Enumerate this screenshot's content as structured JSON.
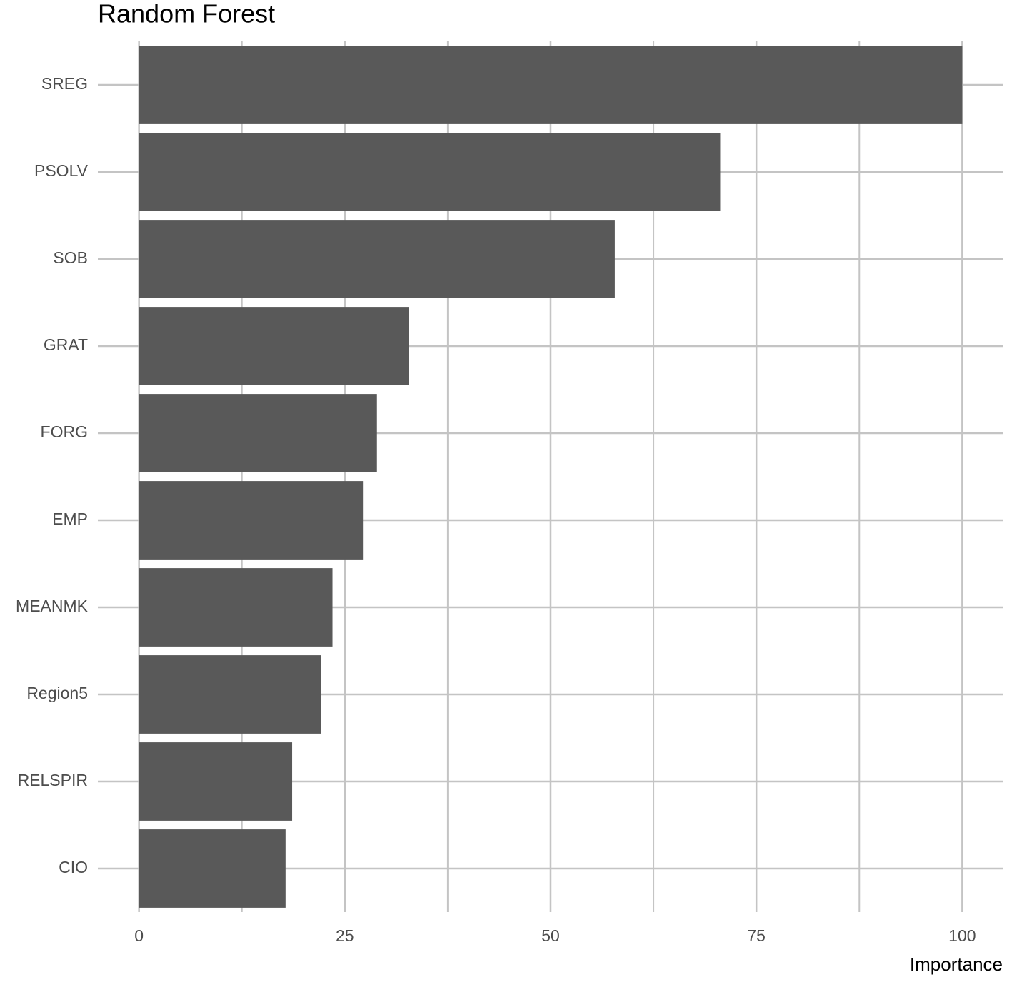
{
  "chart_data": {
    "type": "barh",
    "title": "Random Forest",
    "x_label": "Importance",
    "categories": [
      "SREG",
      "PSOLV",
      "SOB",
      "GRAT",
      "FORG",
      "EMP",
      "MEANMK",
      "Region5",
      "RELSPIR",
      "CIO"
    ],
    "values": [
      100,
      70.6,
      57.8,
      32.8,
      28.9,
      27.2,
      23.5,
      22.1,
      18.6,
      17.8
    ],
    "color": "#595959",
    "xlim": [
      -5,
      105
    ],
    "xticks": [
      0,
      25,
      50,
      75,
      100
    ],
    "grid": true
  }
}
